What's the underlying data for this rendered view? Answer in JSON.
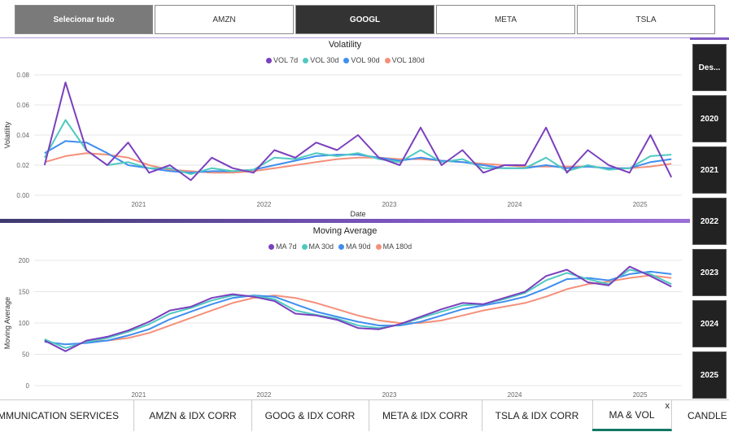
{
  "slicer": {
    "items": [
      "Selecionar tudo",
      "AMZN",
      "GOOGL",
      "META",
      "TSLA"
    ],
    "selected": "GOOGL"
  },
  "years": [
    "Des...",
    "2020",
    "2021",
    "2022",
    "2023",
    "2024",
    "2025"
  ],
  "tabs": [
    "COMMUNICATION SERVICES",
    "AMZN & IDX CORR",
    "GOOG & IDX CORR",
    "META & IDX CORR",
    "TSLA & IDX CORR",
    "MA & VOL",
    "CANDLE A"
  ],
  "active_tab": "MA & VOL",
  "tab_close": "x",
  "chart_data": [
    {
      "type": "line",
      "title": "Volatility",
      "xlabel": "Date",
      "ylabel": "Volatility",
      "ylim": [
        0,
        0.08
      ],
      "yticks": [
        "0.00",
        "0.02",
        "0.04",
        "0.06",
        "0.08"
      ],
      "xticks": [
        "2021",
        "2022",
        "2023",
        "2024",
        "2025"
      ],
      "x": [
        "2020-04",
        "2020-06",
        "2020-08",
        "2020-10",
        "2020-12",
        "2021-02",
        "2021-04",
        "2021-06",
        "2021-08",
        "2021-10",
        "2021-12",
        "2022-02",
        "2022-04",
        "2022-06",
        "2022-08",
        "2022-10",
        "2022-12",
        "2023-02",
        "2023-04",
        "2023-06",
        "2023-08",
        "2023-10",
        "2023-12",
        "2024-02",
        "2024-04",
        "2024-06",
        "2024-08",
        "2024-10",
        "2024-12",
        "2025-02",
        "2025-04"
      ],
      "series": [
        {
          "name": "VOL 7d",
          "color": "#7b3fbe",
          "values": [
            0.02,
            0.075,
            0.03,
            0.02,
            0.035,
            0.015,
            0.02,
            0.01,
            0.025,
            0.018,
            0.015,
            0.03,
            0.025,
            0.035,
            0.03,
            0.04,
            0.025,
            0.02,
            0.045,
            0.02,
            0.03,
            0.015,
            0.02,
            0.02,
            0.045,
            0.015,
            0.03,
            0.02,
            0.015,
            0.04,
            0.012
          ]
        },
        {
          "name": "VOL 30d",
          "color": "#4ec9c0",
          "values": [
            0.025,
            0.05,
            0.03,
            0.02,
            0.022,
            0.018,
            0.018,
            0.014,
            0.018,
            0.016,
            0.017,
            0.025,
            0.024,
            0.028,
            0.026,
            0.028,
            0.024,
            0.022,
            0.03,
            0.022,
            0.024,
            0.018,
            0.018,
            0.018,
            0.025,
            0.016,
            0.02,
            0.017,
            0.018,
            0.026,
            0.027
          ]
        },
        {
          "name": "VOL 90d",
          "color": "#3f8ef0",
          "values": [
            0.028,
            0.036,
            0.035,
            0.028,
            0.02,
            0.018,
            0.016,
            0.015,
            0.016,
            0.016,
            0.017,
            0.02,
            0.023,
            0.026,
            0.027,
            0.027,
            0.025,
            0.023,
            0.025,
            0.023,
            0.022,
            0.02,
            0.018,
            0.018,
            0.02,
            0.018,
            0.019,
            0.018,
            0.018,
            0.022,
            0.024
          ]
        },
        {
          "name": "VOL 180d",
          "color": "#f4907a",
          "values": [
            0.022,
            0.026,
            0.028,
            0.027,
            0.025,
            0.02,
            0.017,
            0.016,
            0.015,
            0.015,
            0.016,
            0.018,
            0.02,
            0.022,
            0.024,
            0.025,
            0.025,
            0.024,
            0.024,
            0.023,
            0.022,
            0.021,
            0.02,
            0.019,
            0.019,
            0.019,
            0.019,
            0.018,
            0.018,
            0.019,
            0.021
          ]
        }
      ]
    },
    {
      "type": "line",
      "title": "Moving Average",
      "xlabel": "",
      "ylabel": "Moving Average",
      "ylim": [
        0,
        200
      ],
      "yticks": [
        "0",
        "50",
        "100",
        "150",
        "200"
      ],
      "xticks": [
        "2021",
        "2022",
        "2023",
        "2024",
        "2025"
      ],
      "x": [
        "2020-04",
        "2020-06",
        "2020-08",
        "2020-10",
        "2020-12",
        "2021-02",
        "2021-04",
        "2021-06",
        "2021-08",
        "2021-10",
        "2021-12",
        "2022-02",
        "2022-04",
        "2022-06",
        "2022-08",
        "2022-10",
        "2022-12",
        "2023-02",
        "2023-04",
        "2023-06",
        "2023-08",
        "2023-10",
        "2023-12",
        "2024-02",
        "2024-04",
        "2024-06",
        "2024-08",
        "2024-10",
        "2024-12",
        "2025-02",
        "2025-04"
      ],
      "series": [
        {
          "name": "MA 7d",
          "color": "#7b3fbe",
          "values": [
            72,
            55,
            72,
            78,
            88,
            102,
            120,
            126,
            140,
            146,
            142,
            135,
            115,
            112,
            105,
            92,
            90,
            98,
            110,
            122,
            132,
            130,
            140,
            150,
            175,
            185,
            165,
            160,
            190,
            175,
            158
          ]
        },
        {
          "name": "MA 30d",
          "color": "#4ec9c0",
          "values": [
            74,
            60,
            70,
            76,
            86,
            98,
            115,
            124,
            136,
            144,
            143,
            138,
            120,
            113,
            107,
            96,
            92,
            97,
            108,
            118,
            128,
            130,
            138,
            148,
            168,
            180,
            170,
            162,
            185,
            178,
            162
          ]
        },
        {
          "name": "MA 90d",
          "color": "#3f8ef0",
          "values": [
            70,
            66,
            68,
            72,
            80,
            90,
            106,
            118,
            130,
            140,
            144,
            142,
            130,
            118,
            110,
            102,
            96,
            96,
            102,
            112,
            122,
            128,
            134,
            142,
            155,
            170,
            172,
            168,
            178,
            182,
            178
          ]
        },
        {
          "name": "MA 180d",
          "color": "#f4907a",
          "values": [
            null,
            null,
            71,
            72,
            76,
            84,
            96,
            108,
            120,
            132,
            140,
            144,
            140,
            132,
            122,
            112,
            104,
            100,
            100,
            104,
            112,
            120,
            126,
            132,
            142,
            154,
            162,
            166,
            172,
            176,
            172
          ]
        }
      ]
    }
  ]
}
